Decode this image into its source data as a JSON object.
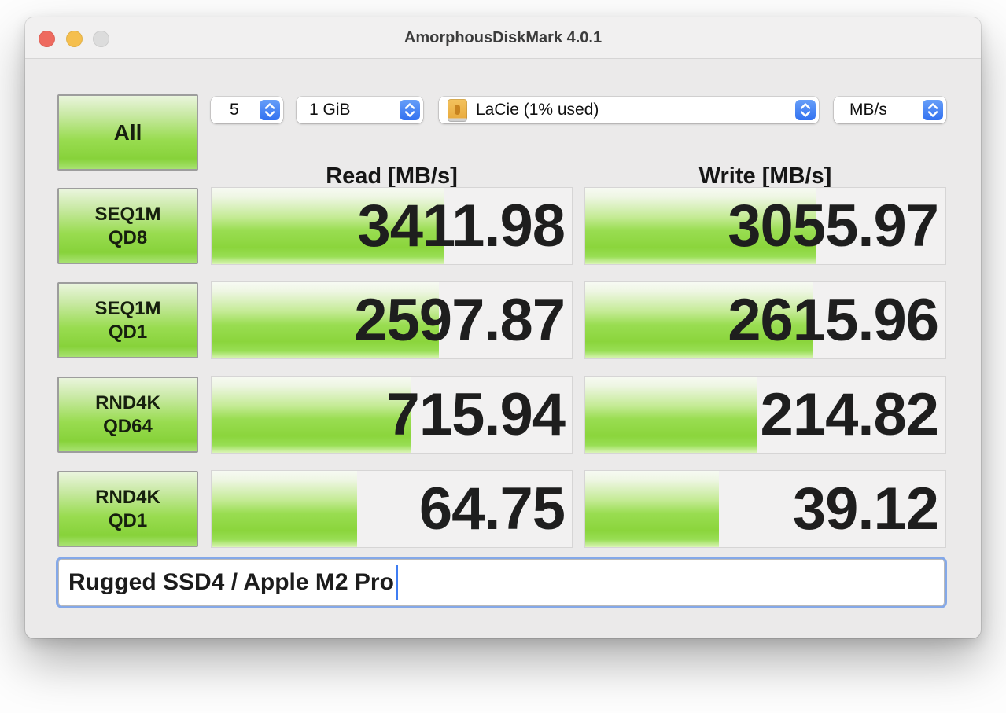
{
  "window": {
    "title": "AmorphousDiskMark 4.0.1"
  },
  "toolbar": {
    "all_label": "All",
    "trial_count": "5",
    "test_size": "1 GiB",
    "target_volume": "LaCie (1% used)",
    "unit": "MB/s"
  },
  "headers": {
    "read": "Read [MB/s]",
    "write": "Write [MB/s]"
  },
  "rows": [
    {
      "label1": "SEQ1M",
      "label2": "QD8",
      "read_value": "3411.98",
      "write_value": "3055.97",
      "read_fill": 64.7,
      "write_fill": 64.3
    },
    {
      "label1": "SEQ1M",
      "label2": "QD1",
      "read_value": "2597.87",
      "write_value": "2615.96",
      "read_fill": 63.2,
      "write_fill": 63.1
    },
    {
      "label1": "RND4K",
      "label2": "QD64",
      "read_value": "715.94",
      "write_value": "214.82",
      "read_fill": 55.3,
      "write_fill": 47.9
    },
    {
      "label1": "RND4K",
      "label2": "QD1",
      "read_value": "64.75",
      "write_value": "39.12",
      "read_fill": 40.3,
      "write_fill": 37.2
    }
  ],
  "comment": {
    "value": "Rugged SSD4 / Apple M2 Pro"
  },
  "icons": {
    "stepper": "up-down-chevrons-icon",
    "volume": "external-drive-icon"
  },
  "colors": {
    "bar_green": "#8dd63f",
    "accent_blue": "#3b78f2",
    "focus_ring": "#84a8e8",
    "close_red": "#ee6a5f",
    "minimize_yellow": "#f5bf4e",
    "zoom_gray": "#dcdcdc"
  }
}
